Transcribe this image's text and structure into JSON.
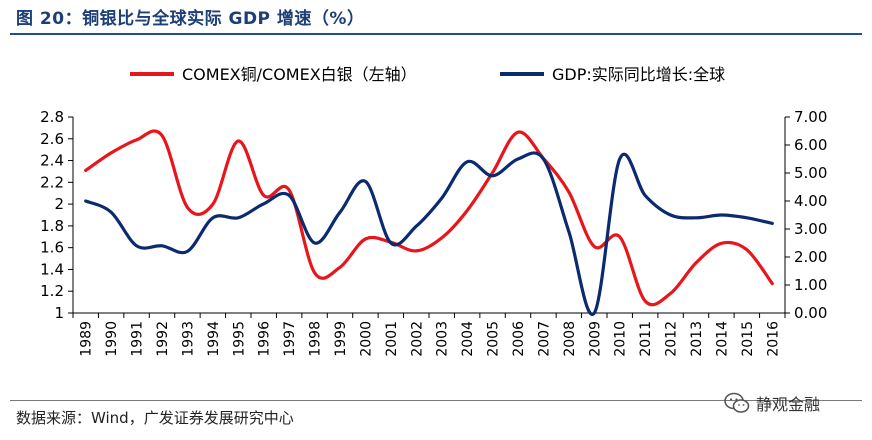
{
  "header": {
    "title": "图 20：铜银比与全球实际 GDP 增速（%）"
  },
  "footer": {
    "source": "数据来源：Wind，广发证券发展研究中心",
    "watermark": "静观金融"
  },
  "colors": {
    "red": "#e8161b",
    "navy": "#0b2a6f",
    "title": "#1c3f78"
  },
  "chart_data": {
    "type": "line",
    "categories": [
      "1989",
      "1990",
      "1991",
      "1992",
      "1993",
      "1994",
      "1995",
      "1996",
      "1997",
      "1998",
      "1999",
      "2000",
      "2001",
      "2002",
      "2003",
      "2004",
      "2005",
      "2006",
      "2007",
      "2008",
      "2009",
      "2010",
      "2011",
      "2012",
      "2013",
      "2014",
      "2015",
      "2016"
    ],
    "legend_position": "top",
    "grid": false,
    "y_left": {
      "ticks": [
        "1",
        "1.2",
        "1.4",
        "1.6",
        "1.8",
        "2",
        "2.2",
        "2.4",
        "2.6",
        "2.8"
      ],
      "range": [
        1,
        2.8
      ]
    },
    "y_right": {
      "ticks": [
        "0.00",
        "1.00",
        "2.00",
        "3.00",
        "4.00",
        "5.00",
        "6.00",
        "7.00"
      ],
      "range": [
        0,
        7
      ]
    },
    "series": [
      {
        "name": "COMEX铜/COMEX白银（左轴）",
        "axis": "left",
        "color": "#e8161b",
        "values": [
          2.31,
          2.47,
          2.59,
          2.63,
          1.97,
          2.0,
          2.58,
          2.08,
          2.13,
          1.37,
          1.42,
          1.68,
          1.65,
          1.57,
          1.69,
          1.94,
          2.29,
          2.66,
          2.42,
          2.11,
          1.61,
          1.7,
          1.11,
          1.18,
          1.46,
          1.64,
          1.58,
          1.27
        ]
      },
      {
        "name": "GDP:实际同比增长:全球",
        "axis": "right",
        "color": "#0b2a6f",
        "values": [
          4.0,
          3.6,
          2.4,
          2.4,
          2.2,
          3.4,
          3.4,
          3.9,
          4.2,
          2.5,
          3.6,
          4.7,
          2.5,
          3.1,
          4.1,
          5.4,
          4.9,
          5.5,
          5.5,
          2.9,
          0.0,
          5.5,
          4.2,
          3.5,
          3.4,
          3.5,
          3.4,
          3.2
        ]
      }
    ]
  }
}
